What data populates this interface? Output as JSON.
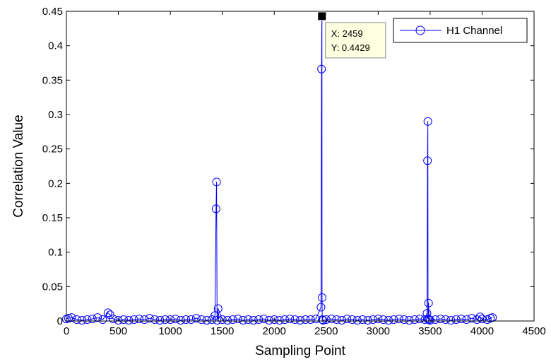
{
  "chart_data": {
    "type": "line",
    "title": "",
    "xlabel": "Sampling Point",
    "ylabel": "Correlation Value",
    "xlim": [
      0,
      4500
    ],
    "ylim": [
      0,
      0.45
    ],
    "x_ticks": [
      0,
      500,
      1000,
      1500,
      2000,
      2500,
      3000,
      3500,
      4000,
      4500
    ],
    "y_ticks": [
      0,
      0.05,
      0.1,
      0.15,
      0.2,
      0.25,
      0.3,
      0.35,
      0.4,
      0.45
    ],
    "x_tick_labels": [
      "0",
      "500",
      "1000",
      "1500",
      "2000",
      "2500",
      "3000",
      "3500",
      "4000",
      "4500"
    ],
    "y_tick_labels": [
      "0",
      "0.05",
      "0.1",
      "0.15",
      "0.2",
      "0.25",
      "0.3",
      "0.35",
      "0.4",
      "0.45"
    ],
    "grid": false,
    "legend_position": "top-right",
    "series": [
      {
        "name": "H1 Channel",
        "color": "#0000ff",
        "marker": "circle",
        "x": [
          0,
          20,
          50,
          100,
          150,
          200,
          250,
          300,
          350,
          400,
          420,
          450,
          500,
          550,
          600,
          650,
          700,
          750,
          800,
          850,
          900,
          950,
          1000,
          1050,
          1100,
          1150,
          1200,
          1250,
          1300,
          1350,
          1400,
          1430,
          1440,
          1445,
          1450,
          1460,
          1500,
          1550,
          1600,
          1650,
          1700,
          1750,
          1800,
          1850,
          1900,
          1950,
          2000,
          2050,
          2100,
          2150,
          2200,
          2250,
          2300,
          2350,
          2400,
          2450,
          2455,
          2458,
          2459,
          2460,
          2462,
          2470,
          2500,
          2550,
          2600,
          2650,
          2700,
          2750,
          2800,
          2850,
          2900,
          2950,
          3000,
          3050,
          3100,
          3150,
          3200,
          3250,
          3300,
          3350,
          3400,
          3450,
          3470,
          3475,
          3478,
          3480,
          3485,
          3490,
          3500,
          3550,
          3600,
          3650,
          3700,
          3750,
          3800,
          3850,
          3900,
          3950,
          3980,
          4000,
          4050,
          4080,
          4100
        ],
        "y": [
          0.003,
          0.004,
          0.005,
          0.002,
          0.001,
          0.002,
          0.003,
          0.005,
          0.002,
          0.012,
          0.009,
          0.003,
          0.001,
          0.002,
          0.001,
          0.002,
          0.003,
          0.002,
          0.004,
          0.002,
          0.001,
          0.002,
          0.002,
          0.003,
          0.001,
          0.002,
          0.002,
          0.004,
          0.002,
          0.001,
          0.002,
          0.008,
          0.163,
          0.202,
          0.001,
          0.018,
          0.002,
          0.001,
          0.002,
          0.003,
          0.001,
          0.002,
          0.001,
          0.002,
          0.003,
          0.001,
          0.002,
          0.001,
          0.002,
          0.003,
          0.002,
          0.001,
          0.002,
          0.002,
          0.003,
          0.02,
          0.366,
          0.4429,
          0.4429,
          0.034,
          0.002,
          0.001,
          0.002,
          0.003,
          0.002,
          0.001,
          0.003,
          0.002,
          0.001,
          0.002,
          0.001,
          0.002,
          0.003,
          0.002,
          0.001,
          0.002,
          0.003,
          0.002,
          0.001,
          0.002,
          0.003,
          0.002,
          0.011,
          0.233,
          0.29,
          0.003,
          0.026,
          0.002,
          0.001,
          0.002,
          0.003,
          0.002,
          0.001,
          0.002,
          0.003,
          0.002,
          0.004,
          0.002,
          0.006,
          0.003,
          0.002,
          0.004,
          0.005
        ]
      }
    ],
    "annotations": [
      {
        "type": "datatip",
        "x": 2459,
        "y": 0.4429,
        "x_text": "X: 2459",
        "y_text": "Y: 0.4429"
      }
    ]
  }
}
